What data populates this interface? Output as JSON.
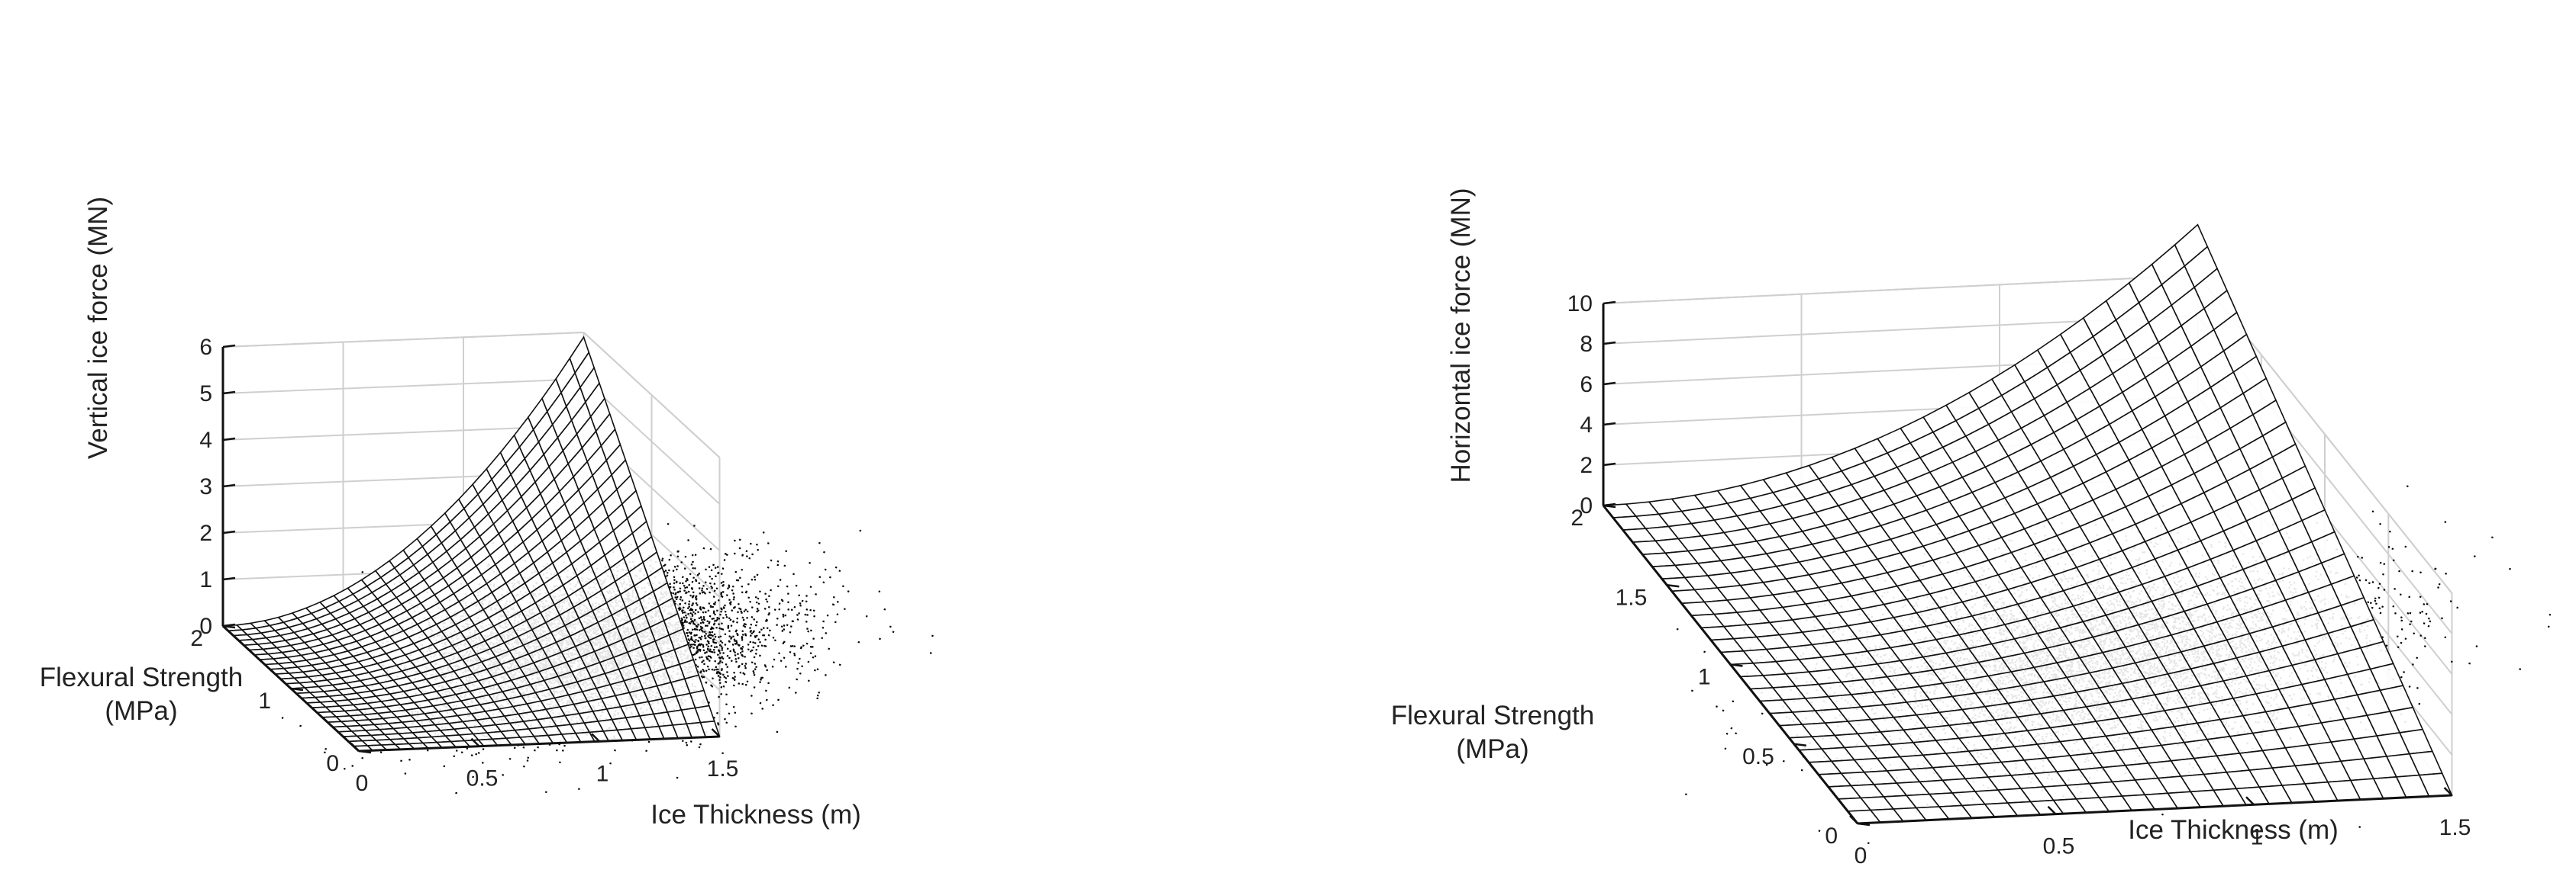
{
  "chart_data": [
    {
      "type": "surface3d",
      "title": "",
      "xlabel": "Ice Thickness (m)",
      "ylabel_lines": [
        "Flexural Strength",
        "(MPa)"
      ],
      "zlabel": "Vertical ice force (MN)",
      "xlim": [
        0,
        1.5
      ],
      "ylim": [
        0,
        2
      ],
      "zlim": [
        0,
        6
      ],
      "x_ticks": [
        "0",
        "0.5",
        "1",
        "1.5"
      ],
      "x_tick_values": [
        0,
        0.5,
        1,
        1.5
      ],
      "y_ticks": [
        "0",
        "1",
        "2"
      ],
      "y_tick_values": [
        0,
        1,
        2
      ],
      "z_ticks": [
        "0",
        "1",
        "2",
        "3",
        "4",
        "5",
        "6"
      ],
      "z_tick_values": [
        0,
        1,
        2,
        3,
        4,
        5,
        6
      ],
      "surface_corner_values": {
        "x1.5_y2": 5.9,
        "x1.5_y0": 0.0,
        "x0_y2": 0.0,
        "x0_y0": 0.0
      },
      "scatter_center": {
        "x": 0.55,
        "y": 0.85
      },
      "grid": true
    },
    {
      "type": "surface3d",
      "title": "",
      "xlabel": "Ice Thickness (m)",
      "ylabel_lines": [
        "Flexural Strength",
        "(MPa)"
      ],
      "zlabel": "Horizontal ice force (MN)",
      "xlim": [
        0,
        1.5
      ],
      "ylim": [
        0,
        2
      ],
      "zlim": [
        0,
        10
      ],
      "x_ticks": [
        "0",
        "0.5",
        "1",
        "1.5"
      ],
      "x_tick_values": [
        0,
        0.5,
        1,
        1.5
      ],
      "y_ticks": [
        "0",
        "0.5",
        "1",
        "1.5",
        "2"
      ],
      "y_tick_values": [
        0,
        0.5,
        1,
        1.5,
        2
      ],
      "z_ticks": [
        "0",
        "2",
        "4",
        "6",
        "8",
        "10"
      ],
      "z_tick_values": [
        0,
        2,
        4,
        6,
        8,
        10
      ],
      "surface_corner_values": {
        "x1.5_y2": 12.5,
        "x1.5_y0": 0.0,
        "x0_y2": 0.0,
        "x0_y0": 0.0
      },
      "scatter_center": {
        "x": 0.55,
        "y": 0.9
      },
      "grid": true
    }
  ]
}
